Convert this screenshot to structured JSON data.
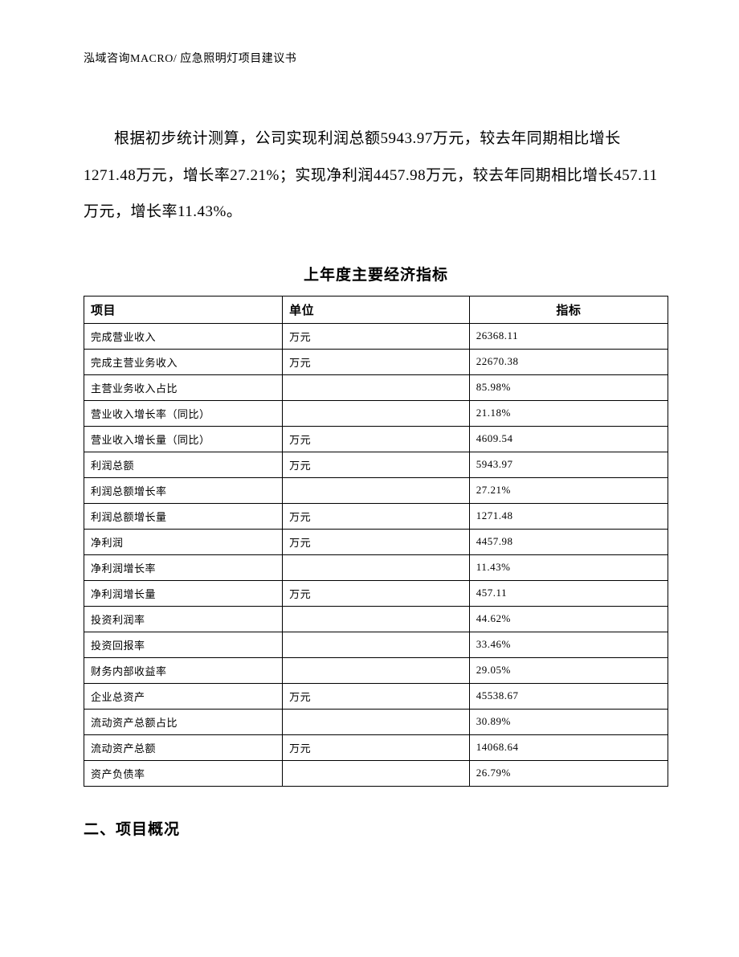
{
  "header": "泓域咨询MACRO/ 应急照明灯项目建议书",
  "body_paragraph": "根据初步统计测算，公司实现利润总额5943.97万元，较去年同期相比增长1271.48万元，增长率27.21%；实现净利润4457.98万元，较去年同期相比增长457.11万元，增长率11.43%。",
  "table": {
    "title": "上年度主要经济指标",
    "columns": [
      "项目",
      "单位",
      "指标"
    ],
    "rows": [
      [
        "完成营业收入",
        "万元",
        "26368.11"
      ],
      [
        "完成主营业务收入",
        "万元",
        "22670.38"
      ],
      [
        "主营业务收入占比",
        "",
        "85.98%"
      ],
      [
        "营业收入增长率（同比）",
        "",
        "21.18%"
      ],
      [
        "营业收入增长量（同比）",
        "万元",
        "4609.54"
      ],
      [
        "利润总额",
        "万元",
        "5943.97"
      ],
      [
        "利润总额增长率",
        "",
        "27.21%"
      ],
      [
        "利润总额增长量",
        "万元",
        "1271.48"
      ],
      [
        "净利润",
        "万元",
        "4457.98"
      ],
      [
        "净利润增长率",
        "",
        "11.43%"
      ],
      [
        "净利润增长量",
        "万元",
        "457.11"
      ],
      [
        "投资利润率",
        "",
        "44.62%"
      ],
      [
        "投资回报率",
        "",
        "33.46%"
      ],
      [
        "财务内部收益率",
        "",
        "29.05%"
      ],
      [
        "企业总资产",
        "万元",
        "45538.67"
      ],
      [
        "流动资产总额占比",
        "",
        "30.89%"
      ],
      [
        "流动资产总额",
        "万元",
        "14068.64"
      ],
      [
        "资产负债率",
        "",
        "26.79%"
      ]
    ]
  },
  "section_heading": "二、项目概况"
}
